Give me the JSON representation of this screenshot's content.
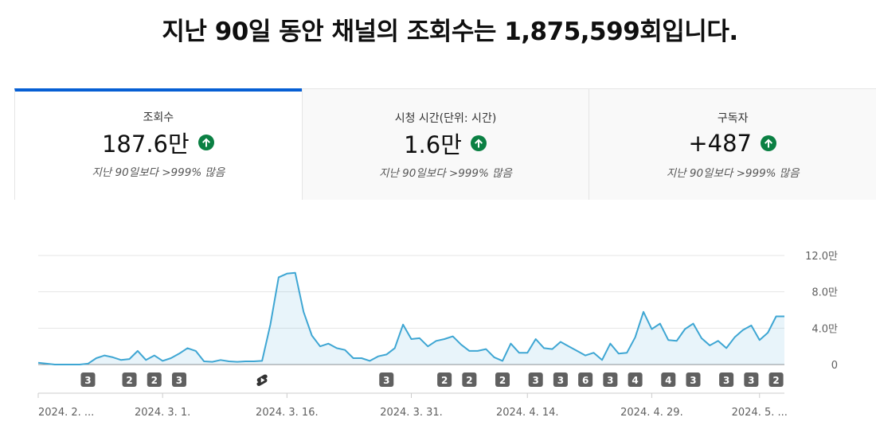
{
  "header": {
    "title": "지난 90일 동안 채널의 조회수는 1,875,599회입니다."
  },
  "cards": [
    {
      "label": "조회수",
      "value": "187.6만",
      "compare": "지난 90일보다 >999% 많음"
    },
    {
      "label": "시청 시간(단위: 시간)",
      "value": "1.6만",
      "compare": "지난 90일보다 >999% 많음"
    },
    {
      "label": "구독자",
      "value": "+487",
      "compare": "지난 90일보다 >999% 많음"
    }
  ],
  "chart_data": {
    "type": "line",
    "categories": [
      "2024. 2. ...",
      null,
      null,
      null,
      null,
      null,
      null,
      null,
      null,
      null,
      null,
      null,
      null,
      null,
      null,
      "2024. 3. 1.",
      null,
      null,
      null,
      null,
      null,
      null,
      null,
      null,
      null,
      null,
      null,
      null,
      null,
      null,
      "2024. 3. 16.",
      null,
      null,
      null,
      null,
      null,
      null,
      null,
      null,
      null,
      null,
      null,
      null,
      null,
      null,
      "2024. 3. 31.",
      null,
      null,
      null,
      null,
      null,
      null,
      null,
      null,
      null,
      null,
      null,
      null,
      null,
      "2024. 4. 14.",
      null,
      null,
      null,
      null,
      null,
      null,
      null,
      null,
      null,
      null,
      null,
      null,
      null,
      null,
      "2024. 4. 29.",
      null,
      null,
      null,
      null,
      null,
      null,
      null,
      null,
      null,
      null,
      null,
      null,
      "2024. 5. ...",
      null,
      null,
      null
    ],
    "values": [
      0.2,
      0.1,
      0,
      0,
      0,
      0,
      0.1,
      0.7,
      1.0,
      0.8,
      0.5,
      0.6,
      1.5,
      0.5,
      1.0,
      0.4,
      0.7,
      1.2,
      1.8,
      1.5,
      0.35,
      0.3,
      0.5,
      0.35,
      0.3,
      0.35,
      0.35,
      0.4,
      4.4,
      9.6,
      10.0,
      10.1,
      5.8,
      3.2,
      2.0,
      2.3,
      1.8,
      1.6,
      0.7,
      0.7,
      0.4,
      0.9,
      1.1,
      1.8,
      4.4,
      2.8,
      2.9,
      2.0,
      2.6,
      2.8,
      3.1,
      2.2,
      1.5,
      1.5,
      1.7,
      0.8,
      0.4,
      2.3,
      1.3,
      1.3,
      2.8,
      1.8,
      1.7,
      2.5,
      2.0,
      1.5,
      1.0,
      1.3,
      0.5,
      2.3,
      1.2,
      1.3,
      3.0,
      5.8,
      3.9,
      4.5,
      2.7,
      2.6,
      3.9,
      4.5,
      2.9,
      2.1,
      2.6,
      1.8,
      3.0,
      3.8,
      4.3,
      2.7,
      3.5,
      5.3,
      5.3
    ],
    "color": "#3ea6d3",
    "ylim": [
      0,
      12
    ],
    "yticks": [
      0,
      {
        "value": 4,
        "label": "4.0만"
      },
      {
        "value": 8,
        "label": "8.0만"
      },
      {
        "value": 12,
        "label": "12.0만"
      }
    ],
    "grid": true,
    "upload_markers": [
      {
        "index": 6,
        "count": 3
      },
      {
        "index": 11,
        "count": 2
      },
      {
        "index": 14,
        "count": 2
      },
      {
        "index": 17,
        "count": 3
      },
      {
        "index": 27,
        "icon": "shorts"
      },
      {
        "index": 42,
        "count": 3
      },
      {
        "index": 49,
        "count": 2
      },
      {
        "index": 52,
        "count": 2
      },
      {
        "index": 56,
        "count": 2
      },
      {
        "index": 60,
        "count": 3
      },
      {
        "index": 63,
        "count": 3
      },
      {
        "index": 66,
        "count": 6
      },
      {
        "index": 69,
        "count": 3
      },
      {
        "index": 72,
        "count": 4
      },
      {
        "index": 76,
        "count": 4
      },
      {
        "index": 79,
        "count": 3
      },
      {
        "index": 83,
        "count": 3
      },
      {
        "index": 86,
        "count": 3
      },
      {
        "index": 89,
        "count": 2
      }
    ]
  }
}
